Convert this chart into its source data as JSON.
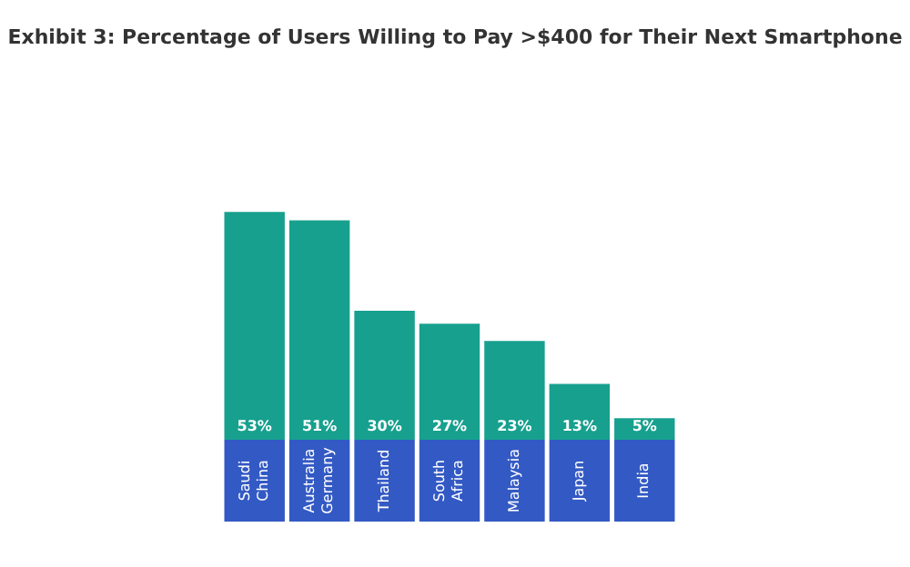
{
  "chart_data": {
    "type": "bar",
    "title": "Exhibit 3: Percentage of Users Willing to Pay >$400 for Their Next Smartphone",
    "categories": [
      "Saudi China",
      "Australia Germany",
      "Thailand",
      "South Africa",
      "Malaysia",
      "Japan",
      "India"
    ],
    "values": [
      53,
      51,
      30,
      27,
      23,
      13,
      5
    ],
    "value_labels": [
      "53%",
      "51%",
      "30%",
      "27%",
      "23%",
      "13%",
      "5%"
    ],
    "color": "#17a08e"
  }
}
